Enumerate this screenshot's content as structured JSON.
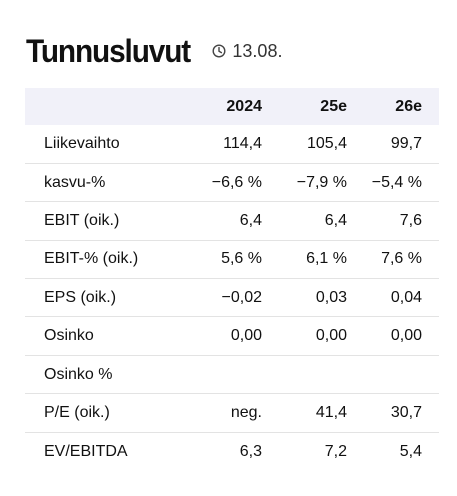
{
  "header": {
    "title": "Tunnusluvut",
    "date": "13.08.",
    "date_icon": "clock-icon"
  },
  "table": {
    "columns": [
      "",
      "2024",
      "25e",
      "26e"
    ],
    "rows": [
      {
        "label": "Liikevaihto",
        "values": [
          "114,4",
          "105,4",
          "99,7"
        ]
      },
      {
        "label": "kasvu-%",
        "values": [
          "−6,6 %",
          "−7,9 %",
          "−5,4 %"
        ]
      },
      {
        "label": "EBIT (oik.)",
        "values": [
          "6,4",
          "6,4",
          "7,6"
        ]
      },
      {
        "label": "EBIT-% (oik.)",
        "values": [
          "5,6 %",
          "6,1 %",
          "7,6 %"
        ]
      },
      {
        "label": "EPS (oik.)",
        "values": [
          "−0,02",
          "0,03",
          "0,04"
        ]
      },
      {
        "label": "Osinko",
        "values": [
          "0,00",
          "0,00",
          "0,00"
        ]
      },
      {
        "label": "Osinko %",
        "values": [
          "",
          "",
          ""
        ]
      },
      {
        "label": "P/E (oik.)",
        "values": [
          "neg.",
          "41,4",
          "30,7"
        ]
      },
      {
        "label": "EV/EBITDA",
        "values": [
          "6,3",
          "7,2",
          "5,4"
        ]
      }
    ]
  },
  "colors": {
    "header_row_bg": "#f1f1f9",
    "divider": "#e3e3e3",
    "text": "#111111"
  }
}
